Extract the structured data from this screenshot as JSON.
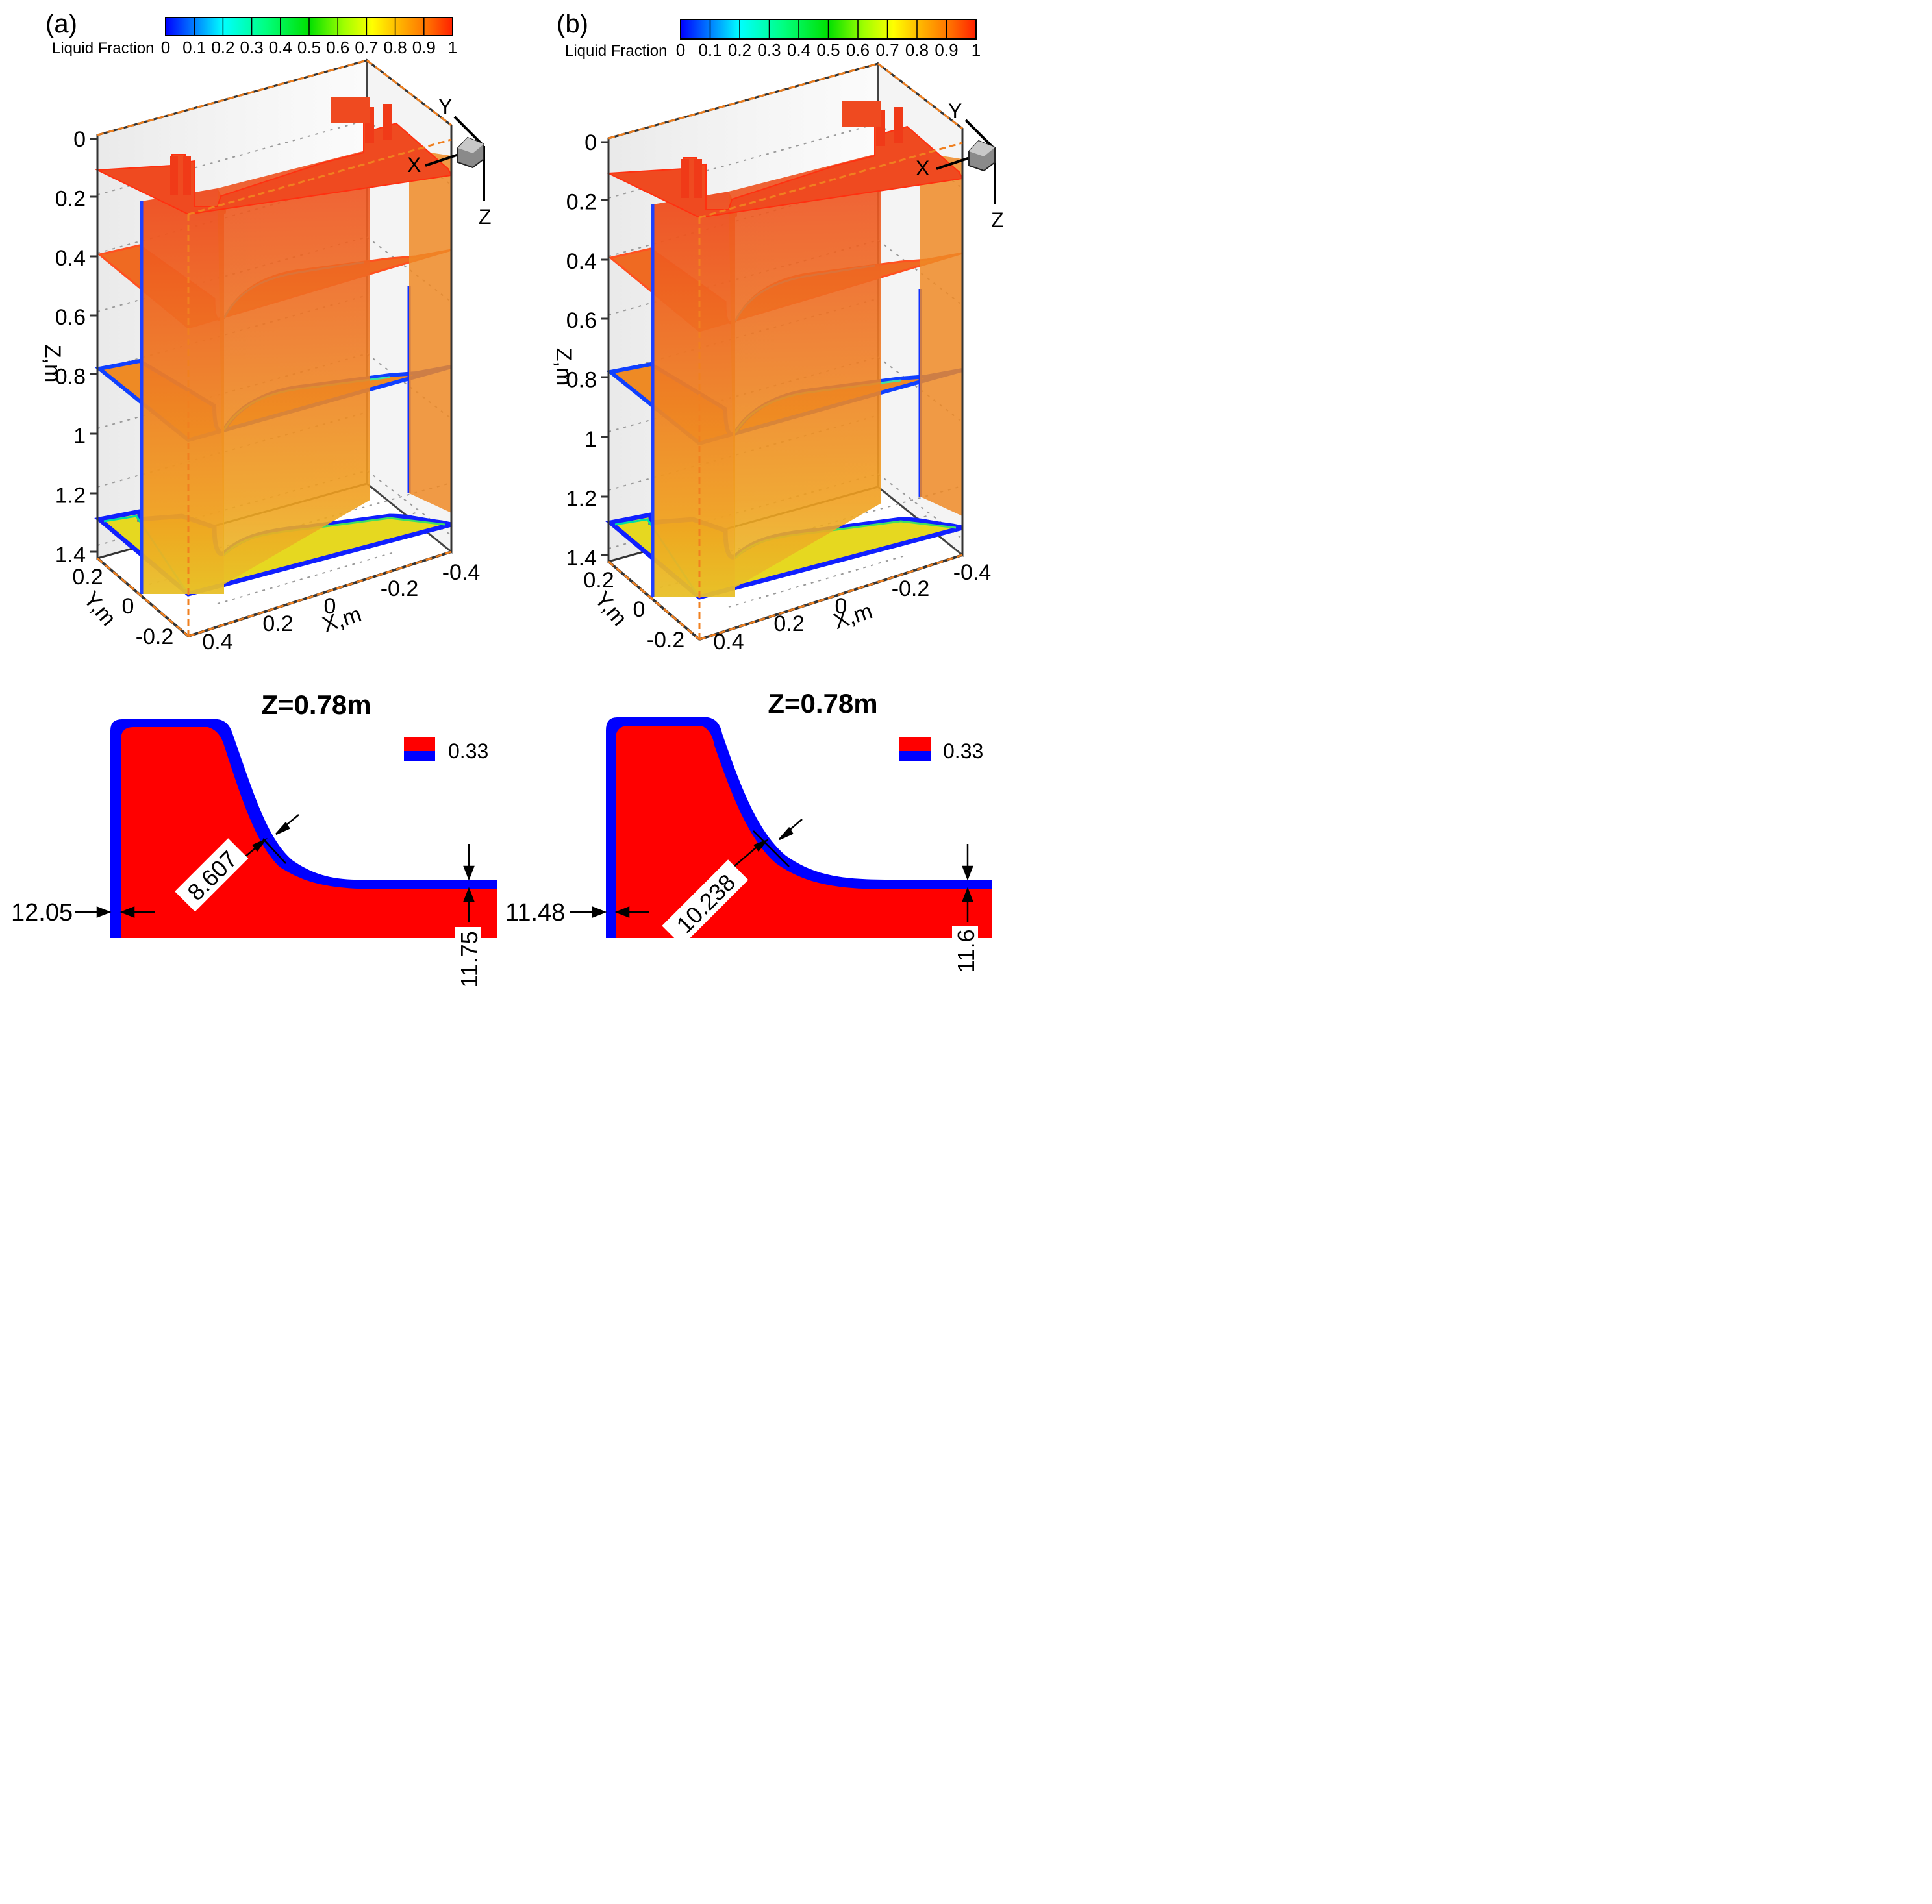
{
  "colormap": [
    "#0000ff",
    "#007fff",
    "#00ffff",
    "#00ff7f",
    "#00ff00",
    "#7fff00",
    "#ffff00",
    "#ffbf00",
    "#ff7f00",
    "#ff3f00",
    "#ff0000"
  ],
  "panels": [
    {
      "id": "a",
      "label": "(a)",
      "legend_title": "Liquid Fraction",
      "legend_ticks": [
        "0",
        "0.1",
        "0.2",
        "0.3",
        "0.4",
        "0.5",
        "0.6",
        "0.7",
        "0.8",
        "0.9",
        "1"
      ],
      "z_axis_label": "Z,m",
      "z_ticks": [
        "0",
        "0.2",
        "0.4",
        "0.6",
        "0.8",
        "1",
        "1.2",
        "1.4"
      ],
      "y_axis_label": "Y,m",
      "y_ticks": [
        "0.2",
        "0",
        "-0.2"
      ],
      "x_axis_label": "X,m",
      "x_ticks": [
        "0.4",
        "0.2",
        "0",
        "-0.2",
        "-0.4"
      ],
      "triad": [
        "X",
        "Y",
        "Z"
      ],
      "section_title": "Z=0.78m",
      "section_legend_value": "0.33",
      "dims": [
        "12.05",
        "8.607",
        "11.75"
      ]
    },
    {
      "id": "b",
      "label": "(b)",
      "legend_title": "Liquid Fraction",
      "legend_ticks": [
        "0",
        "0.1",
        "0.2",
        "0.3",
        "0.4",
        "0.5",
        "0.6",
        "0.7",
        "0.8",
        "0.9",
        "1"
      ],
      "z_axis_label": "Z,m",
      "z_ticks": [
        "0",
        "0.2",
        "0.4",
        "0.6",
        "0.8",
        "1",
        "1.2",
        "1.4"
      ],
      "y_axis_label": "Y,m",
      "y_ticks": [
        "0.2",
        "0",
        "-0.2"
      ],
      "x_axis_label": "X,m",
      "x_ticks": [
        "0.4",
        "0.2",
        "0",
        "-0.2",
        "-0.4"
      ],
      "triad": [
        "X",
        "Y",
        "Z"
      ],
      "section_title": "Z=0.78m",
      "section_legend_value": "0.33",
      "dims": [
        "11.48",
        "10.238",
        "11.6"
      ]
    }
  ]
}
